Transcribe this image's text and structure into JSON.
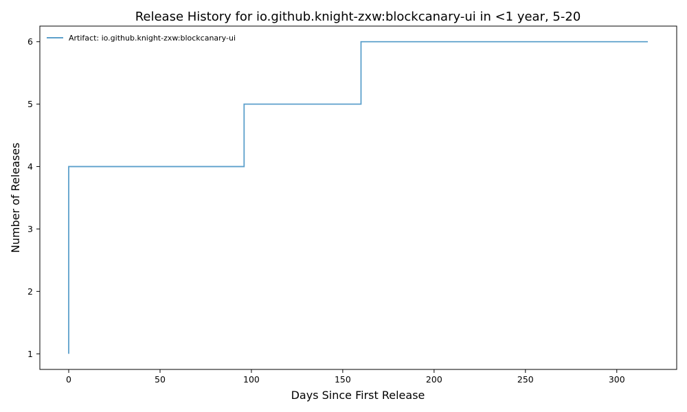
{
  "chart_data": {
    "type": "line",
    "step": true,
    "title": "Release History for io.github.knight-zxw:blockcanary-ui in <1 year, 5-20",
    "xlabel": "Days Since First Release",
    "ylabel": "Number of Releases",
    "xlim": [
      -15.8,
      332.8
    ],
    "ylim": [
      0.75,
      6.25
    ],
    "x_ticks": [
      0,
      50,
      100,
      150,
      200,
      250,
      300
    ],
    "y_ticks": [
      1,
      2,
      3,
      4,
      5,
      6
    ],
    "grid": false,
    "legend_position": "top-left",
    "series": [
      {
        "name": "Artifact: io.github.knight-zxw:blockcanary-ui",
        "color": "#5b9fcb",
        "x": [
          0,
          0,
          0,
          0,
          96,
          160,
          317
        ],
        "y": [
          1,
          2,
          3,
          4,
          5,
          6,
          6
        ]
      }
    ]
  }
}
